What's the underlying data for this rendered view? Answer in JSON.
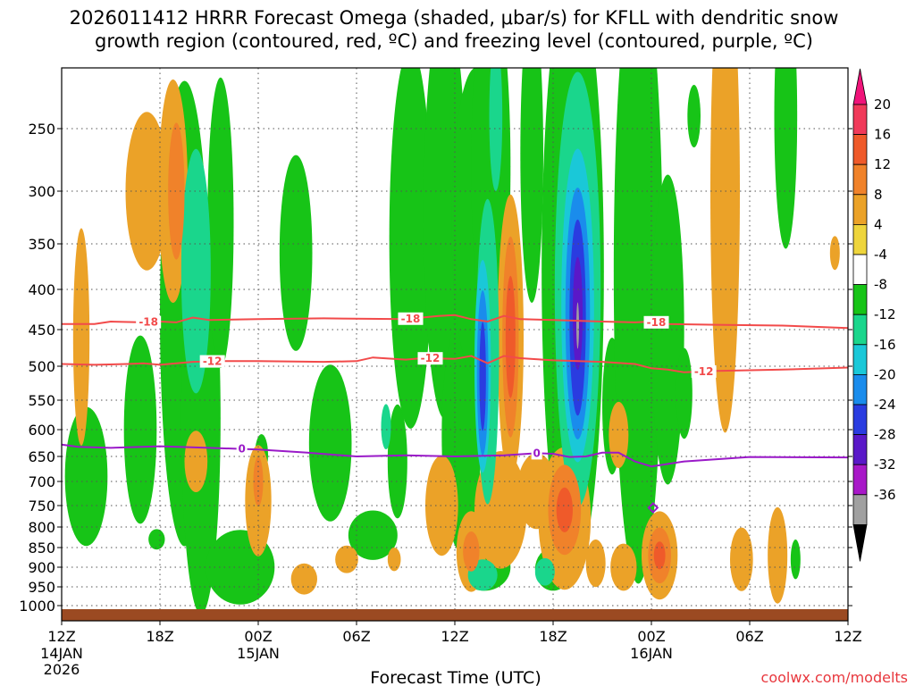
{
  "chart_data": {
    "type": "heatmap",
    "title_lines": [
      "2026011412 HRRR Forecast Omega (shaded, μbar/s) for KFLL with dendritic snow",
      "growth region (contoured, red, ºC) and freezing level (contoured, purple, ºC)"
    ],
    "xlabel": "Forecast Time (UTC)",
    "ylabel": "",
    "credit": "coolwx.com/modelts",
    "x_range_hours": [
      0,
      48
    ],
    "x_ticks": [
      {
        "hour": 0,
        "label": "12Z",
        "sub": "14JAN",
        "sub2": "2026"
      },
      {
        "hour": 6,
        "label": "18Z",
        "sub": "",
        "sub2": ""
      },
      {
        "hour": 12,
        "label": "00Z",
        "sub": "15JAN",
        "sub2": ""
      },
      {
        "hour": 18,
        "label": "06Z",
        "sub": "",
        "sub2": ""
      },
      {
        "hour": 24,
        "label": "12Z",
        "sub": "",
        "sub2": ""
      },
      {
        "hour": 30,
        "label": "18Z",
        "sub": "",
        "sub2": ""
      },
      {
        "hour": 36,
        "label": "00Z",
        "sub": "16JAN",
        "sub2": ""
      },
      {
        "hour": 42,
        "label": "06Z",
        "sub": "",
        "sub2": ""
      },
      {
        "hour": 48,
        "label": "12Z",
        "sub": "",
        "sub2": ""
      }
    ],
    "y_range_hPa": [
      1013,
      200
    ],
    "y_ticks": [
      250,
      300,
      350,
      400,
      450,
      500,
      550,
      600,
      650,
      700,
      750,
      800,
      850,
      900,
      950,
      1000
    ],
    "colorbar": {
      "labels": [
        "20",
        "16",
        "12",
        "8",
        "4",
        "-4",
        "-8",
        "-12",
        "-16",
        "-20",
        "-24",
        "-28",
        "-32",
        "-36"
      ],
      "colors": [
        "#f03a5a",
        "#ef5a2a",
        "#f0822a",
        "#eba228",
        "#eed53c",
        "#ffffff",
        "#17c417",
        "#1ad68c",
        "#1ac8d8",
        "#1a8cec",
        "#2a3ce0",
        "#5a18c8",
        "#a818c8",
        "#a0a0a0"
      ],
      "top_arrow_color": "#f0147a",
      "bottom_arrow_color": "#000000"
    },
    "contours": [
      {
        "name": "-18 isotherm",
        "color": "#f24a4a",
        "label": "-18",
        "points": [
          [
            0,
            443
          ],
          [
            2,
            443
          ],
          [
            3,
            440
          ],
          [
            5,
            441
          ],
          [
            6,
            440
          ],
          [
            7,
            441
          ],
          [
            8,
            435
          ],
          [
            9,
            438
          ],
          [
            12,
            437
          ],
          [
            16,
            436
          ],
          [
            21,
            437
          ],
          [
            23,
            433
          ],
          [
            24,
            432
          ],
          [
            25,
            437
          ],
          [
            26,
            440
          ],
          [
            27,
            433
          ],
          [
            28,
            437
          ],
          [
            30,
            438
          ],
          [
            33,
            440
          ],
          [
            35,
            441
          ],
          [
            36,
            440
          ],
          [
            37,
            443
          ],
          [
            40,
            444
          ],
          [
            44,
            445
          ],
          [
            48,
            448
          ]
        ],
        "label_hours": [
          5.3,
          21.3,
          36.3
        ]
      },
      {
        "name": "-12 isotherm",
        "color": "#f24a4a",
        "label": "-12",
        "points": [
          [
            0,
            497
          ],
          [
            2,
            498
          ],
          [
            4,
            497
          ],
          [
            5,
            496
          ],
          [
            6,
            498
          ],
          [
            8,
            494
          ],
          [
            10,
            493
          ],
          [
            12,
            493
          ],
          [
            16,
            494
          ],
          [
            18,
            493
          ],
          [
            19,
            488
          ],
          [
            21,
            491
          ],
          [
            22,
            489
          ],
          [
            24,
            490
          ],
          [
            25,
            486
          ],
          [
            26,
            496
          ],
          [
            27,
            486
          ],
          [
            28,
            489
          ],
          [
            30,
            492
          ],
          [
            33,
            494
          ],
          [
            35,
            497
          ],
          [
            36,
            503
          ],
          [
            37,
            505
          ],
          [
            38,
            509
          ],
          [
            40,
            507
          ],
          [
            44,
            505
          ],
          [
            48,
            502
          ]
        ],
        "label_hours": [
          9.2,
          22.5,
          39.2
        ]
      },
      {
        "name": "freezing level",
        "color": "#9a1ac8",
        "label": "0",
        "points": [
          [
            0,
            628
          ],
          [
            1,
            632
          ],
          [
            3,
            634
          ],
          [
            6,
            631
          ],
          [
            9,
            634
          ],
          [
            12,
            637
          ],
          [
            15,
            643
          ],
          [
            18,
            650
          ],
          [
            21,
            648
          ],
          [
            24,
            650
          ],
          [
            27,
            648
          ],
          [
            29,
            644
          ],
          [
            30,
            645
          ],
          [
            31,
            651
          ],
          [
            32,
            650
          ],
          [
            33,
            643
          ],
          [
            34,
            643
          ],
          [
            35,
            660
          ],
          [
            36,
            670
          ],
          [
            38,
            660
          ],
          [
            42,
            651
          ],
          [
            48,
            652
          ]
        ],
        "label_hours": [
          11.0,
          29.0
        ]
      }
    ],
    "extra_contour_label": {
      "label": "0",
      "hour": 36.1,
      "pressure_hPa": 755,
      "color": "#9a1ac8"
    },
    "omega_regions": [
      {
        "value": -6,
        "hour": 1.5,
        "pressure_hPa": 690,
        "wh": 1.3,
        "hp": 140
      },
      {
        "value": -6,
        "hour": 4.8,
        "pressure_hPa": 600,
        "wh": 1.0,
        "hp": 160
      },
      {
        "value": -6,
        "hour": 5.8,
        "pressure_hPa": 830,
        "wh": 0.5,
        "hp": 25
      },
      {
        "value": -6,
        "hour": 7.5,
        "pressure_hPa": 430,
        "wh": 1.5,
        "hp": 270
      },
      {
        "value": -6,
        "hour": 8.5,
        "pressure_hPa": 580,
        "wh": 1.2,
        "hp": 300
      },
      {
        "value": -6,
        "hour": 9.7,
        "pressure_hPa": 330,
        "wh": 0.8,
        "hp": 140
      },
      {
        "value": -6,
        "hour": 10.9,
        "pressure_hPa": 900,
        "wh": 2.1,
        "hp": 95
      },
      {
        "value": -6,
        "hour": 12.2,
        "pressure_hPa": 647,
        "wh": 0.4,
        "hp": 40
      },
      {
        "value": -6,
        "hour": 14.3,
        "pressure_hPa": 360,
        "wh": 1.0,
        "hp": 100
      },
      {
        "value": -6,
        "hour": 16.4,
        "pressure_hPa": 625,
        "wh": 1.3,
        "hp": 140
      },
      {
        "value": -6,
        "hour": 19.0,
        "pressure_hPa": 820,
        "wh": 1.5,
        "hp": 60
      },
      {
        "value": -6,
        "hour": 20.5,
        "pressure_hPa": 660,
        "wh": 0.6,
        "hp": 110
      },
      {
        "value": -6,
        "hour": 21.3,
        "pressure_hPa": 345,
        "wh": 1.3,
        "hp": 190
      },
      {
        "value": -6,
        "hour": 23.4,
        "pressure_hPa": 320,
        "wh": 1.3,
        "hp": 200
      },
      {
        "value": -6,
        "hour": 24.4,
        "pressure_hPa": 610,
        "wh": 1.2,
        "hp": 200
      },
      {
        "value": -6,
        "hour": 25.3,
        "pressure_hPa": 330,
        "wh": 1.5,
        "hp": 150
      },
      {
        "value": -6,
        "hour": 26.2,
        "pressure_hPa": 280,
        "wh": 1.2,
        "hp": 160
      },
      {
        "value": -6,
        "hour": 25.8,
        "pressure_hPa": 900,
        "wh": 1.6,
        "hp": 60
      },
      {
        "value": -6,
        "hour": 28.7,
        "pressure_hPa": 270,
        "wh": 0.7,
        "hp": 130
      },
      {
        "value": -6,
        "hour": 30.0,
        "pressure_hPa": 905,
        "wh": 1.1,
        "hp": 55
      },
      {
        "value": -6,
        "hour": 31.2,
        "pressure_hPa": 380,
        "wh": 1.9,
        "hp": 330
      },
      {
        "value": -6,
        "hour": 33.6,
        "pressure_hPa": 560,
        "wh": 0.6,
        "hp": 110
      },
      {
        "value": -6,
        "hour": 35.2,
        "pressure_hPa": 380,
        "wh": 1.5,
        "hp": 340
      },
      {
        "value": -6,
        "hour": 36.6,
        "pressure_hPa": 540,
        "wh": 0.6,
        "hp": 60
      },
      {
        "value": -6,
        "hour": 37.0,
        "pressure_hPa": 450,
        "wh": 1.0,
        "hp": 190
      },
      {
        "value": -6,
        "hour": 38.0,
        "pressure_hPa": 540,
        "wh": 0.5,
        "hp": 70
      },
      {
        "value": -6,
        "hour": 38.6,
        "pressure_hPa": 240,
        "wh": 0.4,
        "hp": 25
      },
      {
        "value": -6,
        "hour": 44.2,
        "pressure_hPa": 240,
        "wh": 0.7,
        "hp": 110
      },
      {
        "value": -6,
        "hour": 44.8,
        "pressure_hPa": 880,
        "wh": 0.3,
        "hp": 50
      },
      {
        "value": -10,
        "hour": 8.2,
        "pressure_hPa": 380,
        "wh": 0.9,
        "hp": 130
      },
      {
        "value": -10,
        "hour": 19.8,
        "pressure_hPa": 595,
        "wh": 0.3,
        "hp": 40
      },
      {
        "value": -10,
        "hour": 26.0,
        "pressure_hPa": 480,
        "wh": 0.7,
        "hp": 200
      },
      {
        "value": -10,
        "hour": 26.5,
        "pressure_hPa": 240,
        "wh": 0.4,
        "hp": 60
      },
      {
        "value": -10,
        "hour": 31.5,
        "pressure_hPa": 400,
        "wh": 1.4,
        "hp": 240
      },
      {
        "value": -10,
        "hour": 29.5,
        "pressure_hPa": 912,
        "wh": 0.6,
        "hp": 35
      },
      {
        "value": -10,
        "hour": 25.7,
        "pressure_hPa": 920,
        "wh": 0.9,
        "hp": 40
      },
      {
        "value": -14,
        "hour": 25.7,
        "pressure_hPa": 500,
        "wh": 0.5,
        "hp": 150
      },
      {
        "value": -14,
        "hour": 31.5,
        "pressure_hPa": 420,
        "wh": 1.0,
        "hp": 180
      },
      {
        "value": -18,
        "hour": 25.7,
        "pressure_hPa": 510,
        "wh": 0.35,
        "hp": 120
      },
      {
        "value": -18,
        "hour": 31.5,
        "pressure_hPa": 430,
        "wh": 0.75,
        "hp": 150
      },
      {
        "value": -22,
        "hour": 25.7,
        "pressure_hPa": 515,
        "wh": 0.2,
        "hp": 80
      },
      {
        "value": -22,
        "hour": 31.5,
        "pressure_hPa": 435,
        "wh": 0.5,
        "hp": 120
      },
      {
        "value": -26,
        "hour": 31.5,
        "pressure_hPa": 430,
        "wh": 0.3,
        "hp": 70
      },
      {
        "value": -34,
        "hour": 31.5,
        "pressure_hPa": 445,
        "wh": 0.08,
        "hp": 30
      },
      {
        "value": 6,
        "hour": 1.2,
        "pressure_hPa": 460,
        "wh": 0.5,
        "hp": 140
      },
      {
        "value": 6,
        "hour": 5.2,
        "pressure_hPa": 300,
        "wh": 1.3,
        "hp": 70
      },
      {
        "value": 6,
        "hour": 6.8,
        "pressure_hPa": 300,
        "wh": 0.9,
        "hp": 100
      },
      {
        "value": 6,
        "hour": 8.2,
        "pressure_hPa": 660,
        "wh": 0.7,
        "hp": 60
      },
      {
        "value": 6,
        "hour": 12.0,
        "pressure_hPa": 740,
        "wh": 0.8,
        "hp": 120
      },
      {
        "value": 6,
        "hour": 14.8,
        "pressure_hPa": 930,
        "wh": 0.8,
        "hp": 40
      },
      {
        "value": 6,
        "hour": 17.4,
        "pressure_hPa": 880,
        "wh": 0.7,
        "hp": 35
      },
      {
        "value": 6,
        "hour": 20.3,
        "pressure_hPa": 880,
        "wh": 0.4,
        "hp": 30
      },
      {
        "value": 6,
        "hour": 23.2,
        "pressure_hPa": 750,
        "wh": 1.0,
        "hp": 110
      },
      {
        "value": 6,
        "hour": 25.0,
        "pressure_hPa": 860,
        "wh": 0.9,
        "hp": 100
      },
      {
        "value": 6,
        "hour": 26.8,
        "pressure_hPa": 760,
        "wh": 1.6,
        "hp": 130
      },
      {
        "value": 6,
        "hour": 27.4,
        "pressure_hPa": 460,
        "wh": 0.8,
        "hp": 180
      },
      {
        "value": 6,
        "hour": 29.0,
        "pressure_hPa": 720,
        "wh": 1.2,
        "hp": 80
      },
      {
        "value": 6,
        "hour": 30.7,
        "pressure_hPa": 780,
        "wh": 1.6,
        "hp": 160
      },
      {
        "value": 6,
        "hour": 32.6,
        "pressure_hPa": 890,
        "wh": 0.6,
        "hp": 60
      },
      {
        "value": 6,
        "hour": 34.3,
        "pressure_hPa": 900,
        "wh": 0.8,
        "hp": 60
      },
      {
        "value": 6,
        "hour": 36.5,
        "pressure_hPa": 870,
        "wh": 1.1,
        "hp": 110
      },
      {
        "value": 6,
        "hour": 34.0,
        "pressure_hPa": 610,
        "wh": 0.6,
        "hp": 60
      },
      {
        "value": 6,
        "hour": 40.5,
        "pressure_hPa": 300,
        "wh": 0.9,
        "hp": 230
      },
      {
        "value": 6,
        "hour": 41.5,
        "pressure_hPa": 880,
        "wh": 0.7,
        "hp": 80
      },
      {
        "value": 6,
        "hour": 43.7,
        "pressure_hPa": 870,
        "wh": 0.6,
        "hp": 120
      },
      {
        "value": 6,
        "hour": 47.2,
        "pressure_hPa": 360,
        "wh": 0.3,
        "hp": 18
      },
      {
        "value": 10,
        "hour": 7.0,
        "pressure_hPa": 300,
        "wh": 0.5,
        "hp": 60
      },
      {
        "value": 10,
        "hour": 12.0,
        "pressure_hPa": 700,
        "wh": 0.3,
        "hp": 50
      },
      {
        "value": 10,
        "hour": 25.0,
        "pressure_hPa": 860,
        "wh": 0.5,
        "hp": 50
      },
      {
        "value": 10,
        "hour": 27.4,
        "pressure_hPa": 460,
        "wh": 0.5,
        "hp": 130
      },
      {
        "value": 10,
        "hour": 30.7,
        "pressure_hPa": 760,
        "wh": 1.0,
        "hp": 100
      },
      {
        "value": 10,
        "hour": 36.5,
        "pressure_hPa": 870,
        "wh": 0.7,
        "hp": 70
      },
      {
        "value": 14,
        "hour": 27.4,
        "pressure_hPa": 460,
        "wh": 0.3,
        "hp": 80
      },
      {
        "value": 14,
        "hour": 30.7,
        "pressure_hPa": 760,
        "wh": 0.5,
        "hp": 50
      },
      {
        "value": 14,
        "hour": 36.5,
        "pressure_hPa": 870,
        "wh": 0.35,
        "hp": 35
      }
    ]
  }
}
